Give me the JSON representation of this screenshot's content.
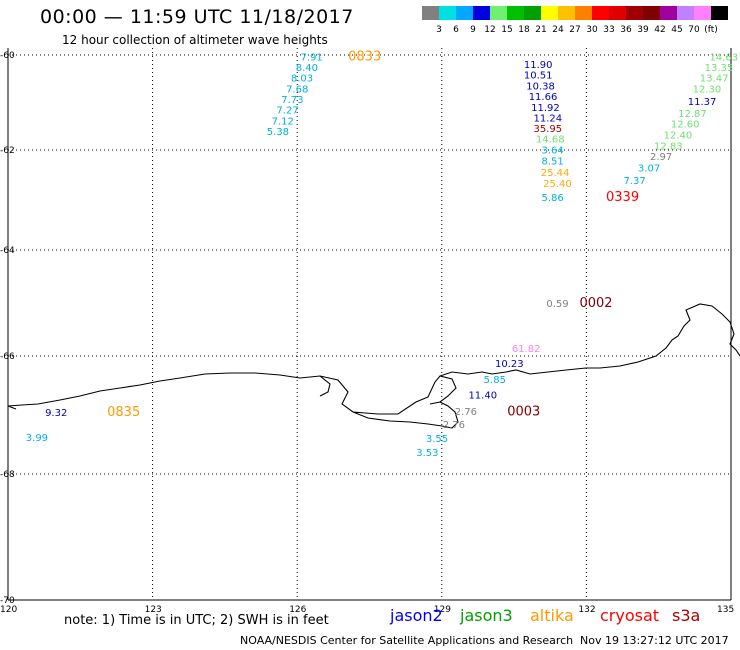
{
  "title": "00:00 — 11:59 UTC 11/18/2017",
  "subtitle": "12 hour collection of altimeter wave heights",
  "scale": {
    "colors": [
      "#808080",
      "#00e0e0",
      "#00a8ff",
      "#0000e0",
      "#70f070",
      "#00c000",
      "#00a000",
      "#ffff00",
      "#ffc000",
      "#ff8000",
      "#ff0000",
      "#e00000",
      "#a00000",
      "#800000",
      "#a000a0",
      "#c080ff",
      "#ff80ff",
      "#000000"
    ],
    "labels": [
      "3",
      "6",
      "9",
      "12",
      "15",
      "18",
      "21",
      "24",
      "27",
      "30",
      "33",
      "36",
      "39",
      "42",
      "45",
      "70",
      "(ft)"
    ]
  },
  "y_ticks": [
    "-60",
    "-62",
    "-64",
    "-66",
    "-68",
    "-70"
  ],
  "x_ticks": [
    "120",
    "123",
    "126",
    "129",
    "132",
    "135"
  ],
  "note": "note: 1) Time is in UTC; 2) SWH is in feet",
  "satellites": [
    {
      "name": "jason2",
      "color": "#0000ff"
    },
    {
      "name": "jason3",
      "color": "#00a000"
    },
    {
      "name": "altika",
      "color": "#ff9900"
    },
    {
      "name": "cryosat",
      "color": "#ff0000"
    },
    {
      "name": "s3a",
      "color": "#aa0000"
    }
  ],
  "credit": "NOAA/NESDIS Center for Satellite Applications and Research",
  "timestamp": "Nov 19 13:27:12 UTC 2017",
  "tracks": [
    {
      "lon": 126.3,
      "lat": -60.03,
      "text": "7.91",
      "color": "#00b0e0"
    },
    {
      "lon": 126.2,
      "lat": -60.25,
      "text": "8.40",
      "color": "#00b0e0"
    },
    {
      "lon": 126.1,
      "lat": -60.47,
      "text": "8.03",
      "color": "#00b0e0"
    },
    {
      "lon": 126.0,
      "lat": -60.7,
      "text": "7.68",
      "color": "#00b0e0"
    },
    {
      "lon": 125.9,
      "lat": -60.93,
      "text": "7.73",
      "color": "#00b0e0"
    },
    {
      "lon": 125.8,
      "lat": -61.15,
      "text": "7.27",
      "color": "#00b0e0"
    },
    {
      "lon": 125.7,
      "lat": -61.38,
      "text": "7.12",
      "color": "#00b0e0"
    },
    {
      "lon": 125.6,
      "lat": -61.6,
      "text": "5.38",
      "color": "#00b0e0"
    },
    {
      "lon": 127.4,
      "lat": -60.03,
      "text": "0833",
      "color": "#ff9900",
      "big": true
    },
    {
      "lon": 131.0,
      "lat": -60.19,
      "text": "11.90",
      "color": "#0000c0"
    },
    {
      "lon": 131.0,
      "lat": -60.41,
      "text": "10.51",
      "color": "#0000c0"
    },
    {
      "lon": 131.05,
      "lat": -60.64,
      "text": "10.38",
      "color": "#0000c0"
    },
    {
      "lon": 131.1,
      "lat": -60.86,
      "text": "11.66",
      "color": "#0000c0"
    },
    {
      "lon": 131.15,
      "lat": -61.09,
      "text": "11.92",
      "color": "#0000c0"
    },
    {
      "lon": 131.2,
      "lat": -61.32,
      "text": "11.24",
      "color": "#0000c0"
    },
    {
      "lon": 131.2,
      "lat": -61.54,
      "text": "35.95",
      "color": "#a00000"
    },
    {
      "lon": 131.25,
      "lat": -61.76,
      "text": "14.68",
      "color": "#70e070"
    },
    {
      "lon": 131.3,
      "lat": -61.99,
      "text": "3.64",
      "color": "#00b0e0"
    },
    {
      "lon": 131.3,
      "lat": -62.21,
      "text": "8.51",
      "color": "#00b0e0"
    },
    {
      "lon": 131.35,
      "lat": -62.44,
      "text": "25.44",
      "color": "#ffaa00"
    },
    {
      "lon": 131.4,
      "lat": -62.66,
      "text": "25.40",
      "color": "#ffaa00"
    },
    {
      "lon": 131.3,
      "lat": -62.94,
      "text": "5.86",
      "color": "#00b0e0"
    },
    {
      "lon": 132.75,
      "lat": -62.94,
      "text": "0339",
      "color": "#ff0000",
      "big": true
    },
    {
      "lon": 134.85,
      "lat": -60.03,
      "text": "14.63",
      "color": "#70e070"
    },
    {
      "lon": 134.75,
      "lat": -60.25,
      "text": "13.35",
      "color": "#70e070"
    },
    {
      "lon": 134.65,
      "lat": -60.47,
      "text": "13.47",
      "color": "#70e070"
    },
    {
      "lon": 134.5,
      "lat": -60.7,
      "text": "12.30",
      "color": "#70e070"
    },
    {
      "lon": 134.4,
      "lat": -60.97,
      "text": "11.37",
      "color": "#0000c0"
    },
    {
      "lon": 134.2,
      "lat": -61.22,
      "text": "12.87",
      "color": "#70e070"
    },
    {
      "lon": 134.05,
      "lat": -61.44,
      "text": "12.60",
      "color": "#70e070"
    },
    {
      "lon": 133.9,
      "lat": -61.67,
      "text": "12.40",
      "color": "#70e070"
    },
    {
      "lon": 133.7,
      "lat": -61.9,
      "text": "12.83",
      "color": "#70e070"
    },
    {
      "lon": 133.55,
      "lat": -62.12,
      "text": "2.97",
      "color": "#808080"
    },
    {
      "lon": 133.3,
      "lat": -62.35,
      "text": "3.07",
      "color": "#00b0e0"
    },
    {
      "lon": 133.0,
      "lat": -62.6,
      "text": "7.37",
      "color": "#00b0e0"
    },
    {
      "lon": 131.4,
      "lat": -65.0,
      "text": "0.59",
      "color": "#808080"
    },
    {
      "lon": 132.2,
      "lat": -65.0,
      "text": "0002",
      "color": "#800000",
      "big": true
    },
    {
      "lon": 130.75,
      "lat": -65.85,
      "text": "61.82",
      "color": "#ff80ff"
    },
    {
      "lon": 130.4,
      "lat": -66.12,
      "text": "10.23",
      "color": "#0000c0"
    },
    {
      "lon": 130.1,
      "lat": -66.39,
      "text": "5.85",
      "color": "#00b0e0"
    },
    {
      "lon": 129.85,
      "lat": -66.65,
      "text": "11.40",
      "color": "#0000c0"
    },
    {
      "lon": 129.5,
      "lat": -66.93,
      "text": "2.76",
      "color": "#808080"
    },
    {
      "lon": 129.25,
      "lat": -67.15,
      "text": "2.76",
      "color": "#808080"
    },
    {
      "lon": 128.9,
      "lat": -67.39,
      "text": "3.55",
      "color": "#00b0e0"
    },
    {
      "lon": 128.7,
      "lat": -67.63,
      "text": "3.53",
      "color": "#00b0e0"
    },
    {
      "lon": 130.7,
      "lat": -66.94,
      "text": "0003",
      "color": "#800000",
      "big": true
    },
    {
      "lon": 121.0,
      "lat": -66.95,
      "text": "9.32",
      "color": "#0000c0"
    },
    {
      "lon": 122.4,
      "lat": -66.95,
      "text": "0835",
      "color": "#ff9900",
      "big": true
    },
    {
      "lon": 120.6,
      "lat": -67.37,
      "text": "3.99",
      "color": "#00b0e0"
    }
  ]
}
